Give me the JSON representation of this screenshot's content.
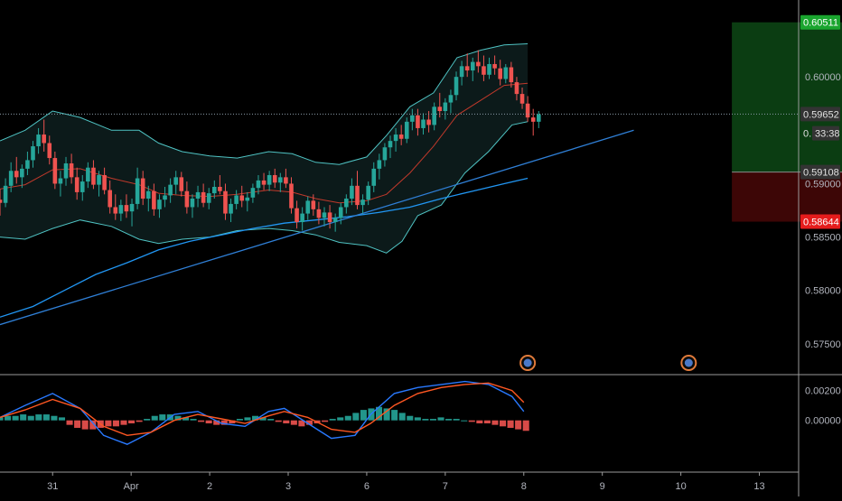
{
  "chart_data": {
    "type": "candlestick",
    "title": "",
    "colors": {
      "background": "#000000",
      "candle_up": "#26a69a",
      "candle_down": "#ef5350",
      "bollinger": "#4fc3c3",
      "ma_slow": "#2196f3",
      "ma_mid": "#c0392b",
      "trendline": "#2f7fd6",
      "macd_line": "#2979ff",
      "signal_line": "#ff5722",
      "hist_up": "#26a69a",
      "hist_down": "#ef5350",
      "target_zone": "#0b3d12",
      "stop_zone": "#3d0606",
      "axis_text": "#b2b5be",
      "grid": "#1a1a1a"
    },
    "price_axis": {
      "ylim": [
        0.5722,
        0.6072
      ],
      "ticks": [
        "0.60000",
        "0.59000",
        "0.58500",
        "0.58000",
        "0.57500"
      ],
      "tick_values": [
        0.6,
        0.59,
        0.585,
        0.58,
        0.575
      ]
    },
    "price_badges": [
      {
        "label": "0.60511",
        "value": 0.60511,
        "color": "#1aa52f",
        "text": "#ffffff"
      },
      {
        "label": "0.59652",
        "value": 0.59652,
        "color": "#333333",
        "text": "#e0e0e0"
      },
      {
        "label": "33:38",
        "value": 0.59472,
        "color": "#333333",
        "text": "#e0e0e0"
      },
      {
        "label": "0.59108",
        "value": 0.59108,
        "color": "#333333",
        "text": "#e0e0e0"
      },
      {
        "label": "0.58644",
        "value": 0.58644,
        "color": "#e51c1c",
        "text": "#ffffff"
      }
    ],
    "current_price": 0.59652,
    "countdown_prefix": "0.",
    "trade_box": {
      "target": 0.60511,
      "entry": 0.59108,
      "stop": 0.58644,
      "start_day": 8.1,
      "end_day": 10.15
    },
    "x_axis": {
      "labels": [
        "31",
        "Apr",
        "2",
        "3",
        "6",
        "7",
        "8",
        "9",
        "10",
        "13"
      ],
      "positions": [
        -0.55,
        0.45,
        1.45,
        2.45,
        3.45,
        4.45,
        5.45,
        6.45,
        7.45,
        8.45
      ]
    },
    "price_series": {
      "ohlc": [
        [
          0.5885,
          0.5895,
          0.587,
          0.5882
        ],
        [
          0.5882,
          0.5905,
          0.5878,
          0.5898
        ],
        [
          0.5898,
          0.592,
          0.5892,
          0.5912
        ],
        [
          0.5912,
          0.5925,
          0.59,
          0.5906
        ],
        [
          0.5906,
          0.5918,
          0.5896,
          0.5914
        ],
        [
          0.5914,
          0.593,
          0.5908,
          0.5922
        ],
        [
          0.5922,
          0.594,
          0.5915,
          0.5935
        ],
        [
          0.5935,
          0.5952,
          0.5928,
          0.5946
        ],
        [
          0.5946,
          0.596,
          0.593,
          0.5938
        ],
        [
          0.5938,
          0.5945,
          0.5918,
          0.5924
        ],
        [
          0.5924,
          0.593,
          0.5895,
          0.59
        ],
        [
          0.59,
          0.5912,
          0.5888,
          0.5905
        ],
        [
          0.5905,
          0.5925,
          0.5898,
          0.5919
        ],
        [
          0.5919,
          0.5928,
          0.59,
          0.5906
        ],
        [
          0.5906,
          0.5915,
          0.5885,
          0.5892
        ],
        [
          0.5892,
          0.5908,
          0.5884,
          0.5902
        ],
        [
          0.5902,
          0.592,
          0.5896,
          0.5915
        ],
        [
          0.5915,
          0.5922,
          0.5895,
          0.5899
        ],
        [
          0.5899,
          0.5912,
          0.5888,
          0.5908
        ],
        [
          0.5908,
          0.5915,
          0.589,
          0.5894
        ],
        [
          0.5894,
          0.5903,
          0.5872,
          0.5878
        ],
        [
          0.5878,
          0.589,
          0.5866,
          0.5872
        ],
        [
          0.5872,
          0.5885,
          0.5865,
          0.588
        ],
        [
          0.588,
          0.589,
          0.5868,
          0.5874
        ],
        [
          0.5874,
          0.5886,
          0.586,
          0.5881
        ],
        [
          0.5881,
          0.5915,
          0.5876,
          0.5905
        ],
        [
          0.5905,
          0.5912,
          0.588,
          0.5886
        ],
        [
          0.5886,
          0.5898,
          0.5874,
          0.5893
        ],
        [
          0.5893,
          0.59,
          0.587,
          0.5876
        ],
        [
          0.5876,
          0.589,
          0.5868,
          0.5885
        ],
        [
          0.5885,
          0.5897,
          0.5878,
          0.5889
        ],
        [
          0.5889,
          0.5905,
          0.5882,
          0.5899
        ],
        [
          0.5899,
          0.5912,
          0.589,
          0.5906
        ],
        [
          0.5906,
          0.5911,
          0.5888,
          0.5893
        ],
        [
          0.5893,
          0.5902,
          0.5872,
          0.5878
        ],
        [
          0.5878,
          0.589,
          0.5868,
          0.5886
        ],
        [
          0.5886,
          0.5898,
          0.5878,
          0.5892
        ],
        [
          0.5892,
          0.59,
          0.5878,
          0.5882
        ],
        [
          0.5882,
          0.5896,
          0.5876,
          0.5891
        ],
        [
          0.5891,
          0.5903,
          0.5886,
          0.5897
        ],
        [
          0.5897,
          0.5908,
          0.589,
          0.5893
        ],
        [
          0.5893,
          0.59,
          0.5866,
          0.5872
        ],
        [
          0.5872,
          0.5886,
          0.5864,
          0.5881
        ],
        [
          0.5881,
          0.5894,
          0.5876,
          0.5889
        ],
        [
          0.5889,
          0.5898,
          0.5878,
          0.5884
        ],
        [
          0.5884,
          0.5892,
          0.5874,
          0.5887
        ],
        [
          0.5887,
          0.59,
          0.5882,
          0.5896
        ],
        [
          0.5896,
          0.5908,
          0.589,
          0.5903
        ],
        [
          0.5903,
          0.591,
          0.5894,
          0.5899
        ],
        [
          0.5899,
          0.5912,
          0.5893,
          0.5908
        ],
        [
          0.5908,
          0.5914,
          0.5896,
          0.5901
        ],
        [
          0.5901,
          0.591,
          0.5892,
          0.5906
        ],
        [
          0.5906,
          0.5914,
          0.5896,
          0.59
        ],
        [
          0.59,
          0.5906,
          0.5872,
          0.5877
        ],
        [
          0.5877,
          0.5884,
          0.5858,
          0.5864
        ],
        [
          0.5864,
          0.5878,
          0.5856,
          0.5872
        ],
        [
          0.5872,
          0.5888,
          0.5866,
          0.5884
        ],
        [
          0.5884,
          0.589,
          0.587,
          0.5876
        ],
        [
          0.5876,
          0.5883,
          0.5862,
          0.5868
        ],
        [
          0.5868,
          0.5878,
          0.586,
          0.5873
        ],
        [
          0.5873,
          0.588,
          0.5858,
          0.5864
        ],
        [
          0.5864,
          0.5872,
          0.5855,
          0.5868
        ],
        [
          0.5868,
          0.5882,
          0.5862,
          0.5878
        ],
        [
          0.5878,
          0.589,
          0.5872,
          0.5886
        ],
        [
          0.5886,
          0.5905,
          0.588,
          0.5898
        ],
        [
          0.5898,
          0.5912,
          0.5876,
          0.588
        ],
        [
          0.588,
          0.589,
          0.5872,
          0.5885
        ],
        [
          0.5885,
          0.5902,
          0.588,
          0.5898
        ],
        [
          0.5898,
          0.592,
          0.5892,
          0.5914
        ],
        [
          0.5914,
          0.5928,
          0.5904,
          0.5922
        ],
        [
          0.5922,
          0.5938,
          0.5916,
          0.5934
        ],
        [
          0.5934,
          0.5945,
          0.5924,
          0.594
        ],
        [
          0.594,
          0.5952,
          0.593,
          0.5946
        ],
        [
          0.5946,
          0.5955,
          0.5936,
          0.5942
        ],
        [
          0.5942,
          0.5962,
          0.5938,
          0.5958
        ],
        [
          0.5958,
          0.597,
          0.595,
          0.5964
        ],
        [
          0.5964,
          0.597,
          0.5945,
          0.5952
        ],
        [
          0.5952,
          0.5966,
          0.5946,
          0.596
        ],
        [
          0.596,
          0.5968,
          0.5948,
          0.5955
        ],
        [
          0.5955,
          0.5976,
          0.595,
          0.5972
        ],
        [
          0.5972,
          0.5985,
          0.5962,
          0.5968
        ],
        [
          0.5968,
          0.598,
          0.596,
          0.5976
        ],
        [
          0.5976,
          0.5988,
          0.5966,
          0.5983
        ],
        [
          0.5983,
          0.6005,
          0.5978,
          0.6
        ],
        [
          0.6,
          0.6015,
          0.5992,
          0.601
        ],
        [
          0.601,
          0.6022,
          0.6,
          0.6006
        ],
        [
          0.6006,
          0.6018,
          0.5996,
          0.6014
        ],
        [
          0.6014,
          0.6025,
          0.6004,
          0.601
        ],
        [
          0.601,
          0.602,
          0.5996,
          0.6002
        ],
        [
          0.6002,
          0.6018,
          0.5998,
          0.6012
        ],
        [
          0.6012,
          0.602,
          0.6002,
          0.6008
        ],
        [
          0.6008,
          0.6016,
          0.5992,
          0.5998
        ],
        [
          0.5998,
          0.6012,
          0.5994,
          0.6009
        ],
        [
          0.6009,
          0.6014,
          0.599,
          0.5995
        ],
        [
          0.5995,
          0.6,
          0.5978,
          0.5984
        ],
        [
          0.5984,
          0.599,
          0.597,
          0.5975
        ],
        [
          0.5975,
          0.5982,
          0.5958,
          0.5962
        ],
        [
          0.5962,
          0.597,
          0.5945,
          0.5958
        ],
        [
          0.5958,
          0.5968,
          0.5952,
          0.5965
        ]
      ],
      "start_day": -1.22,
      "step_days": 0.07
    },
    "bollinger": {
      "upper": [
        [
          -1.22,
          0.594
        ],
        [
          -0.9,
          0.595
        ],
        [
          -0.55,
          0.5968
        ],
        [
          -0.2,
          0.5962
        ],
        [
          0.2,
          0.595
        ],
        [
          0.55,
          0.595
        ],
        [
          0.8,
          0.5938
        ],
        [
          1.1,
          0.593
        ],
        [
          1.45,
          0.5926
        ],
        [
          1.8,
          0.5924
        ],
        [
          2.2,
          0.593
        ],
        [
          2.5,
          0.5928
        ],
        [
          2.8,
          0.592
        ],
        [
          3.1,
          0.5918
        ],
        [
          3.45,
          0.5925
        ],
        [
          3.7,
          0.5945
        ],
        [
          4.0,
          0.5972
        ],
        [
          4.3,
          0.5985
        ],
        [
          4.6,
          0.6018
        ],
        [
          4.9,
          0.6025
        ],
        [
          5.2,
          0.603
        ],
        [
          5.5,
          0.6031
        ]
      ],
      "lower": [
        [
          -1.22,
          0.585
        ],
        [
          -0.9,
          0.5848
        ],
        [
          -0.55,
          0.5858
        ],
        [
          -0.2,
          0.5866
        ],
        [
          0.2,
          0.586
        ],
        [
          0.55,
          0.5848
        ],
        [
          0.8,
          0.5844
        ],
        [
          1.1,
          0.5848
        ],
        [
          1.45,
          0.585
        ],
        [
          1.8,
          0.5856
        ],
        [
          2.2,
          0.5858
        ],
        [
          2.5,
          0.5856
        ],
        [
          2.8,
          0.5852
        ],
        [
          3.1,
          0.5845
        ],
        [
          3.45,
          0.5842
        ],
        [
          3.7,
          0.5835
        ],
        [
          3.9,
          0.5846
        ],
        [
          4.1,
          0.587
        ],
        [
          4.4,
          0.588
        ],
        [
          4.7,
          0.591
        ],
        [
          5.0,
          0.593
        ],
        [
          5.3,
          0.5955
        ],
        [
          5.5,
          0.5958
        ]
      ],
      "middle": [
        [
          -1.22,
          0.5895
        ],
        [
          -0.9,
          0.5899
        ],
        [
          -0.55,
          0.5913
        ],
        [
          -0.2,
          0.5914
        ],
        [
          0.2,
          0.5905
        ],
        [
          0.55,
          0.5899
        ],
        [
          0.8,
          0.5891
        ],
        [
          1.1,
          0.5889
        ],
        [
          1.45,
          0.5888
        ],
        [
          1.8,
          0.589
        ],
        [
          2.2,
          0.5894
        ],
        [
          2.5,
          0.5892
        ],
        [
          2.8,
          0.5886
        ],
        [
          3.1,
          0.5882
        ],
        [
          3.45,
          0.5884
        ],
        [
          3.7,
          0.589
        ],
        [
          4.0,
          0.591
        ],
        [
          4.3,
          0.5935
        ],
        [
          4.6,
          0.5964
        ],
        [
          4.9,
          0.5978
        ],
        [
          5.2,
          0.5992
        ],
        [
          5.5,
          0.5994
        ]
      ]
    },
    "ma_slow": [
      [
        -1.22,
        0.5775
      ],
      [
        -0.8,
        0.5785
      ],
      [
        -0.4,
        0.58
      ],
      [
        0.0,
        0.5815
      ],
      [
        0.4,
        0.5826
      ],
      [
        0.8,
        0.5838
      ],
      [
        1.2,
        0.5846
      ],
      [
        1.6,
        0.5852
      ],
      [
        2.0,
        0.5858
      ],
      [
        2.4,
        0.5863
      ],
      [
        2.8,
        0.5866
      ],
      [
        3.2,
        0.5869
      ],
      [
        3.6,
        0.5873
      ],
      [
        4.0,
        0.5878
      ],
      [
        4.4,
        0.5886
      ],
      [
        4.8,
        0.5893
      ],
      [
        5.2,
        0.59
      ],
      [
        5.5,
        0.5905
      ]
    ],
    "trendline": [
      [
        -1.22,
        0.5768
      ],
      [
        6.85,
        0.595
      ]
    ],
    "macd": {
      "ylim": [
        -0.0034,
        0.003
      ],
      "ticks": [
        "0.00200",
        "0.00000"
      ],
      "tick_values": [
        0.002,
        0.0
      ],
      "macd_line": [
        [
          -1.22,
          0.0002
        ],
        [
          -0.9,
          0.001
        ],
        [
          -0.55,
          0.0018
        ],
        [
          -0.2,
          0.0008
        ],
        [
          0.1,
          -0.001
        ],
        [
          0.4,
          -0.0016
        ],
        [
          0.7,
          -0.0008
        ],
        [
          1.0,
          0.0004
        ],
        [
          1.3,
          0.0006
        ],
        [
          1.6,
          -0.0002
        ],
        [
          1.9,
          -0.0004
        ],
        [
          2.2,
          0.0006
        ],
        [
          2.4,
          0.0008
        ],
        [
          2.7,
          -0.0002
        ],
        [
          3.0,
          -0.0012
        ],
        [
          3.3,
          -0.001
        ],
        [
          3.5,
          0.0004
        ],
        [
          3.8,
          0.0018
        ],
        [
          4.1,
          0.0022
        ],
        [
          4.4,
          0.0024
        ],
        [
          4.7,
          0.0026
        ],
        [
          5.0,
          0.0024
        ],
        [
          5.3,
          0.0016
        ],
        [
          5.45,
          0.0006
        ]
      ],
      "signal_line": [
        [
          -1.22,
          0.0002
        ],
        [
          -0.9,
          0.0007
        ],
        [
          -0.55,
          0.0014
        ],
        [
          -0.2,
          0.0008
        ],
        [
          0.1,
          -0.0004
        ],
        [
          0.4,
          -0.001
        ],
        [
          0.7,
          -0.0008
        ],
        [
          1.0,
          0.0
        ],
        [
          1.3,
          0.0004
        ],
        [
          1.6,
          0.0001
        ],
        [
          1.9,
          -0.0002
        ],
        [
          2.2,
          0.0003
        ],
        [
          2.4,
          0.0006
        ],
        [
          2.7,
          0.0002
        ],
        [
          3.0,
          -0.0006
        ],
        [
          3.3,
          -0.0008
        ],
        [
          3.5,
          -0.0002
        ],
        [
          3.8,
          0.001
        ],
        [
          4.1,
          0.0018
        ],
        [
          4.4,
          0.0022
        ],
        [
          4.7,
          0.0024
        ],
        [
          5.0,
          0.0025
        ],
        [
          5.3,
          0.002
        ],
        [
          5.45,
          0.0012
        ]
      ],
      "histogram": [
        0.0002,
        0.0003,
        0.0003,
        0.0004,
        0.0003,
        0.0004,
        0.0004,
        0.0003,
        0.0002,
        -0.0003,
        -0.0005,
        -0.0006,
        -0.0006,
        -0.0005,
        -0.0004,
        -0.0004,
        -0.0003,
        -0.0002,
        -0.0001,
        0.0001,
        0.0003,
        0.0004,
        0.0004,
        0.0003,
        0.0002,
        0.0001,
        -0.0001,
        -0.0002,
        -0.0003,
        -0.0003,
        -0.0002,
        0.0001,
        0.0002,
        0.0003,
        0.0002,
        0.0001,
        -0.0001,
        -0.0002,
        -0.0003,
        -0.0004,
        -0.0003,
        -0.0002,
        -0.0001,
        0.0001,
        0.0002,
        0.0003,
        0.0005,
        0.0007,
        0.0008,
        0.0009,
        0.0008,
        0.0007,
        0.0005,
        0.0003,
        0.0002,
        0.0001,
        0.0001,
        0.0002,
        0.0001,
        0.0001,
        0.0,
        -0.0001,
        -0.0002,
        -0.0002,
        -0.0003,
        -0.0004,
        -0.0005,
        -0.0006,
        -0.0007
      ],
      "hist_start_day": -1.22,
      "hist_step_days": 0.0985
    },
    "event_markers": [
      5.5,
      7.55
    ],
    "xlim": [
      -1.22,
      8.95
    ]
  }
}
